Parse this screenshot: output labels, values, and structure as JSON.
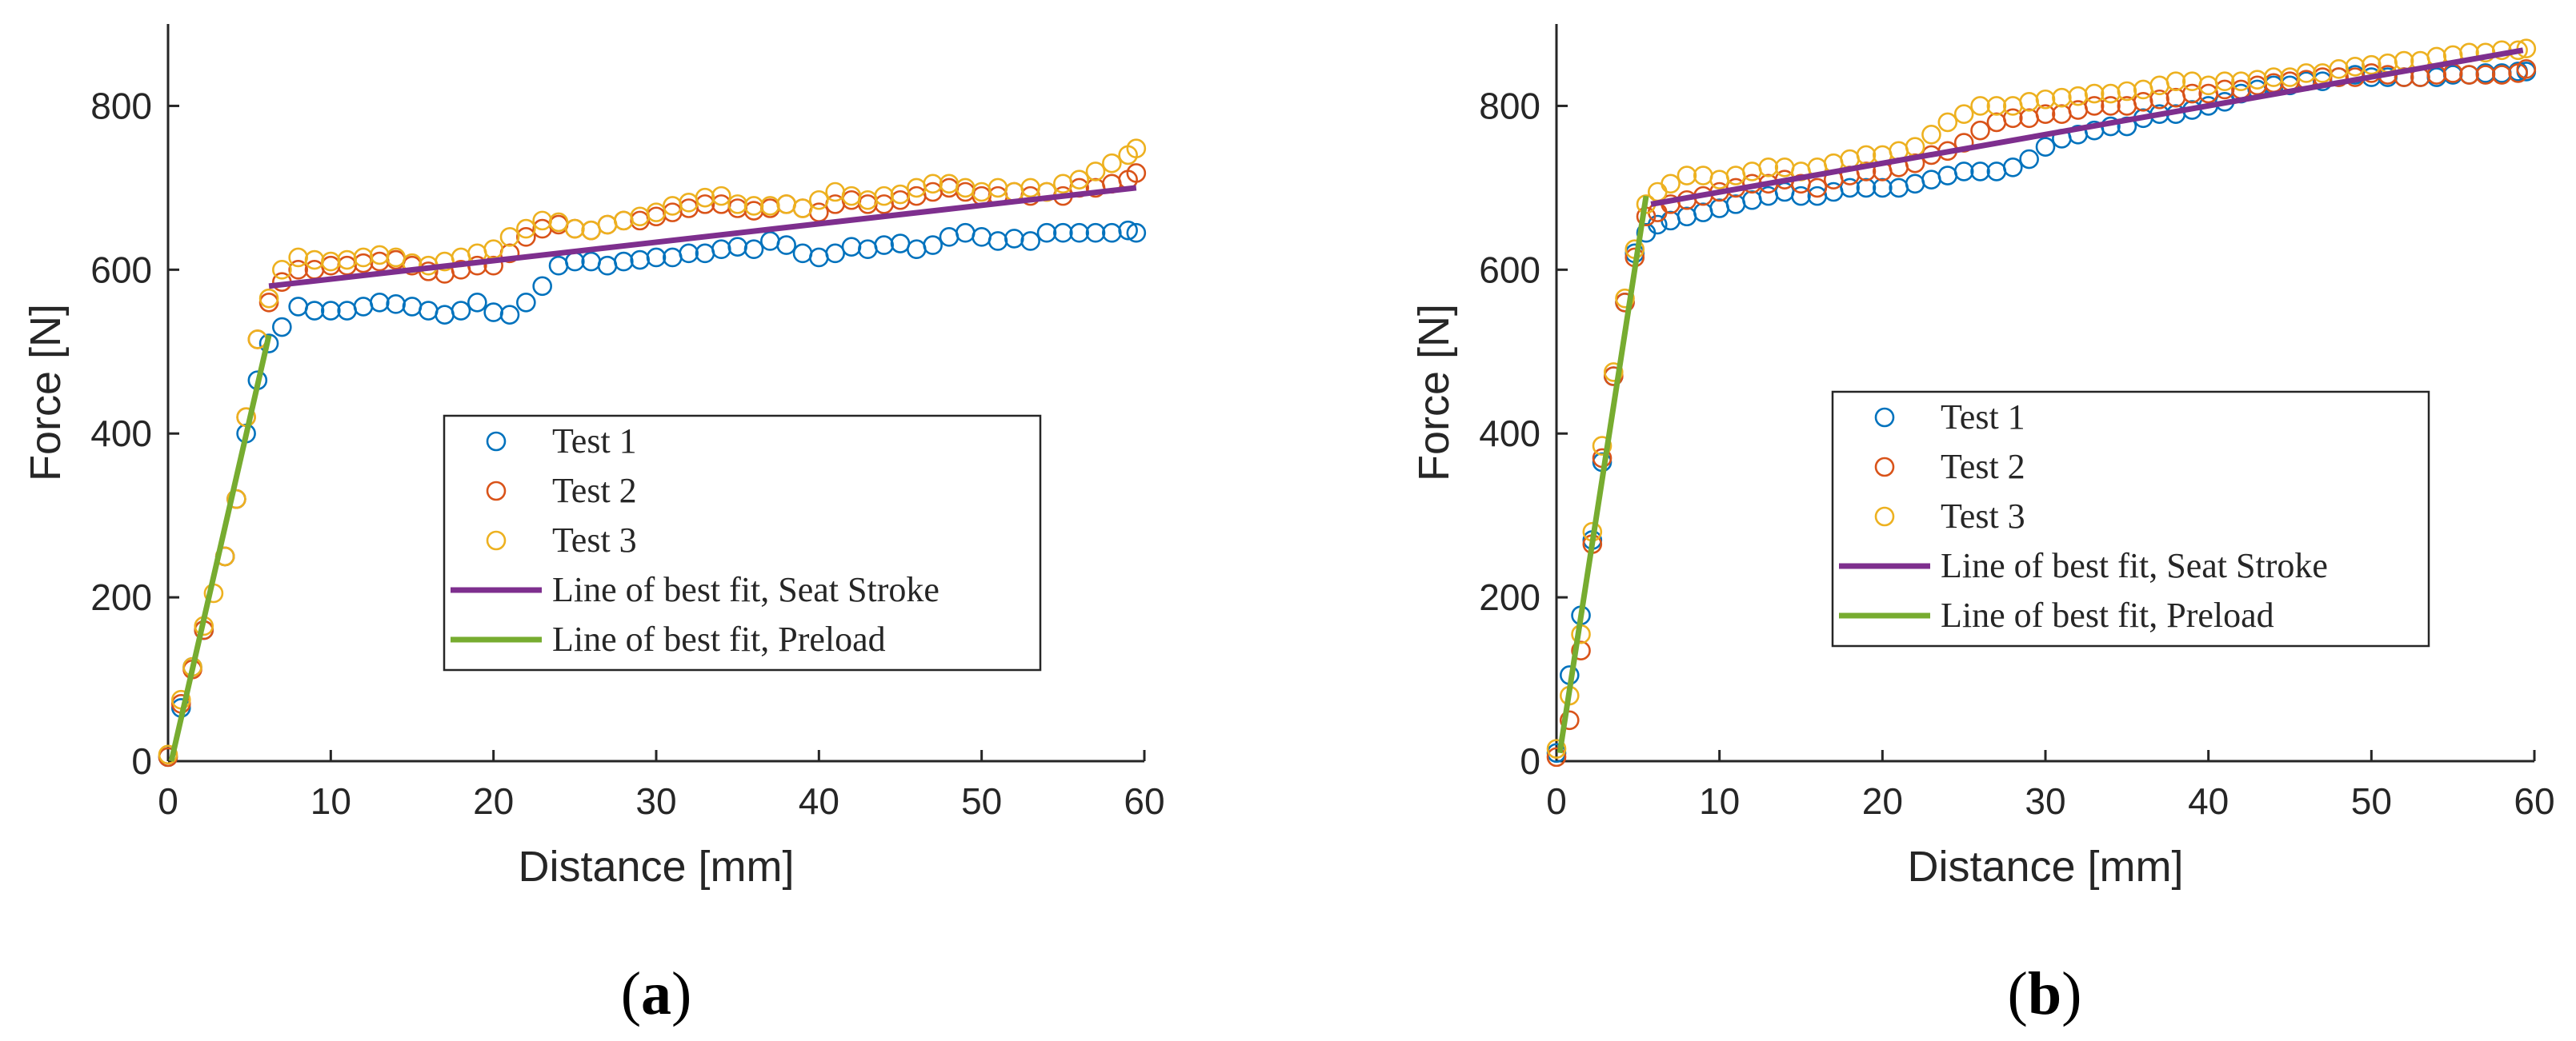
{
  "chart_data": [
    {
      "type": "scatter",
      "panel_label": {
        "open": "(",
        "letter": "a",
        "close": ")"
      },
      "xlabel": "Distance [mm]",
      "ylabel": "Force [N]",
      "xlim": [
        0,
        60
      ],
      "ylim": [
        0,
        900
      ],
      "xticks": [
        0,
        10,
        20,
        30,
        40,
        50,
        60
      ],
      "yticks": [
        0,
        200,
        400,
        600,
        800
      ],
      "legend_position": "center-right",
      "series": [
        {
          "name": "Test 1",
          "kind": "markers",
          "color": "#0072BD",
          "x": [
            0,
            0.8,
            1.5,
            2.2,
            3.5,
            4.2,
            4.8,
            5.5,
            6.2,
            7,
            8,
            9,
            10,
            11,
            12,
            13,
            14,
            15,
            16,
            17,
            18,
            19,
            20,
            21,
            22,
            23,
            24,
            25,
            26,
            27,
            28,
            29,
            30,
            31,
            32,
            33,
            34,
            35,
            36,
            37,
            38,
            39,
            40,
            41,
            42,
            43,
            44,
            45,
            46,
            47,
            48,
            49,
            50,
            51,
            52,
            53,
            54,
            55,
            56,
            57,
            58,
            59,
            59.5
          ],
          "y": [
            5,
            65,
            115,
            160,
            250,
            320,
            400,
            465,
            510,
            530,
            555,
            550,
            550,
            550,
            555,
            560,
            558,
            555,
            550,
            545,
            550,
            560,
            548,
            545,
            560,
            580,
            605,
            610,
            610,
            605,
            610,
            612,
            615,
            615,
            620,
            620,
            625,
            628,
            625,
            635,
            630,
            620,
            615,
            620,
            628,
            625,
            630,
            632,
            625,
            630,
            640,
            645,
            640,
            635,
            638,
            635,
            645,
            645,
            645,
            645,
            645,
            648,
            645
          ]
        },
        {
          "name": "Test 2",
          "kind": "markers",
          "color": "#D95319",
          "x": [
            0,
            0.8,
            1.5,
            2.2,
            3.5,
            4.2,
            4.8,
            5.5,
            6.2,
            7,
            8,
            9,
            10,
            11,
            12,
            13,
            14,
            15,
            16,
            17,
            18,
            19,
            20,
            21,
            22,
            23,
            24,
            25,
            26,
            27,
            28,
            29,
            30,
            31,
            32,
            33,
            34,
            35,
            36,
            37,
            38,
            39,
            40,
            41,
            42,
            43,
            44,
            45,
            46,
            47,
            48,
            49,
            50,
            51,
            52,
            53,
            54,
            55,
            56,
            57,
            58,
            59,
            59.5
          ],
          "y": [
            5,
            70,
            112,
            160,
            250,
            320,
            420,
            515,
            560,
            585,
            600,
            600,
            605,
            605,
            608,
            610,
            612,
            605,
            598,
            595,
            600,
            605,
            605,
            620,
            640,
            650,
            655,
            650,
            648,
            655,
            660,
            660,
            665,
            670,
            675,
            680,
            680,
            675,
            672,
            675,
            680,
            675,
            670,
            680,
            685,
            680,
            680,
            685,
            690,
            695,
            700,
            695,
            690,
            690,
            695,
            690,
            695,
            690,
            700,
            700,
            705,
            710,
            718
          ]
        },
        {
          "name": "Test 3",
          "kind": "markers",
          "color": "#EDB120",
          "x": [
            0,
            0.8,
            1.5,
            2.2,
            2.8,
            3.5,
            4.2,
            4.8,
            5.5,
            6.2,
            7,
            8,
            9,
            10,
            11,
            12,
            13,
            14,
            15,
            16,
            17,
            18,
            19,
            20,
            21,
            22,
            23,
            24,
            25,
            26,
            27,
            28,
            29,
            30,
            31,
            32,
            33,
            34,
            35,
            36,
            37,
            38,
            39,
            40,
            41,
            42,
            43,
            44,
            45,
            46,
            47,
            48,
            49,
            50,
            51,
            52,
            53,
            54,
            55,
            56,
            57,
            58,
            59,
            59.5
          ],
          "y": [
            8,
            75,
            115,
            165,
            205,
            250,
            320,
            420,
            515,
            565,
            600,
            615,
            612,
            610,
            612,
            615,
            618,
            615,
            608,
            605,
            610,
            615,
            620,
            625,
            640,
            650,
            660,
            658,
            650,
            648,
            655,
            660,
            665,
            670,
            678,
            682,
            688,
            690,
            680,
            678,
            678,
            680,
            675,
            685,
            695,
            690,
            685,
            690,
            692,
            700,
            705,
            705,
            700,
            695,
            700,
            695,
            700,
            695,
            705,
            710,
            720,
            730,
            740,
            748
          ]
        },
        {
          "name": "Line of best fit, Seat Stroke",
          "kind": "line",
          "color": "#7E2F8E",
          "x": [
            6.2,
            59.5
          ],
          "y": [
            580,
            700
          ]
        },
        {
          "name": "Line of best fit, Preload",
          "kind": "line",
          "color": "#77AC30",
          "x": [
            0.2,
            6.2
          ],
          "y": [
            0,
            520
          ]
        }
      ]
    },
    {
      "type": "scatter",
      "panel_label": {
        "open": "(",
        "letter": "b",
        "close": ")"
      },
      "xlabel": "Distance [mm]",
      "ylabel": "Force [N]",
      "xlim": [
        0,
        60
      ],
      "ylim": [
        0,
        900
      ],
      "xticks": [
        0,
        10,
        20,
        30,
        40,
        50,
        60
      ],
      "yticks": [
        0,
        200,
        400,
        600,
        800
      ],
      "legend_position": "center",
      "series": [
        {
          "name": "Test 1",
          "kind": "markers",
          "color": "#0072BD",
          "x": [
            0,
            0.8,
            1.5,
            2.2,
            2.8,
            3.5,
            4.2,
            4.8,
            5.5,
            6.2,
            7,
            8,
            9,
            10,
            11,
            12,
            13,
            14,
            15,
            16,
            17,
            18,
            19,
            20,
            21,
            22,
            23,
            24,
            25,
            26,
            27,
            28,
            29,
            30,
            31,
            32,
            33,
            34,
            35,
            36,
            37,
            38,
            39,
            40,
            41,
            42,
            43,
            44,
            45,
            46,
            47,
            48,
            49,
            50,
            51,
            52,
            53,
            54,
            55,
            56,
            57,
            58,
            59,
            59.5
          ],
          "y": [
            10,
            105,
            178,
            270,
            365,
            470,
            560,
            620,
            645,
            655,
            660,
            665,
            670,
            675,
            680,
            685,
            690,
            695,
            690,
            690,
            695,
            700,
            700,
            700,
            700,
            705,
            710,
            715,
            720,
            720,
            720,
            725,
            735,
            750,
            760,
            765,
            770,
            775,
            775,
            785,
            790,
            790,
            795,
            800,
            805,
            815,
            820,
            825,
            825,
            830,
            830,
            835,
            838,
            835,
            835,
            835,
            835,
            835,
            838,
            838,
            840,
            840,
            842,
            842
          ]
        },
        {
          "name": "Test 2",
          "kind": "markers",
          "color": "#D95319",
          "x": [
            0,
            0.8,
            1.5,
            2.2,
            2.8,
            3.5,
            4.2,
            4.8,
            5.5,
            6.2,
            7,
            8,
            9,
            10,
            11,
            12,
            13,
            14,
            15,
            16,
            17,
            18,
            19,
            20,
            21,
            22,
            23,
            24,
            25,
            26,
            27,
            28,
            29,
            30,
            31,
            32,
            33,
            34,
            35,
            36,
            37,
            38,
            39,
            40,
            41,
            42,
            43,
            44,
            45,
            46,
            47,
            48,
            49,
            50,
            51,
            52,
            53,
            54,
            55,
            56,
            57,
            58,
            59,
            59.5
          ],
          "y": [
            5,
            50,
            135,
            265,
            370,
            470,
            560,
            615,
            665,
            670,
            680,
            685,
            690,
            695,
            700,
            705,
            705,
            710,
            705,
            700,
            710,
            715,
            720,
            720,
            725,
            730,
            740,
            745,
            755,
            770,
            780,
            785,
            785,
            790,
            790,
            795,
            800,
            800,
            800,
            805,
            808,
            810,
            815,
            815,
            820,
            820,
            825,
            828,
            830,
            832,
            835,
            835,
            835,
            840,
            838,
            835,
            835,
            838,
            840,
            838,
            838,
            838,
            840,
            845
          ]
        },
        {
          "name": "Test 3",
          "kind": "markers",
          "color": "#EDB120",
          "x": [
            0,
            0.8,
            1.5,
            2.2,
            2.8,
            3.5,
            4.2,
            4.8,
            5.5,
            6.2,
            7,
            8,
            9,
            10,
            11,
            12,
            13,
            14,
            15,
            16,
            17,
            18,
            19,
            20,
            21,
            22,
            23,
            24,
            25,
            26,
            27,
            28,
            29,
            30,
            31,
            32,
            33,
            34,
            35,
            36,
            37,
            38,
            39,
            40,
            41,
            42,
            43,
            44,
            45,
            46,
            47,
            48,
            49,
            50,
            51,
            52,
            53,
            54,
            55,
            56,
            57,
            58,
            59,
            59.5
          ],
          "y": [
            15,
            80,
            155,
            280,
            385,
            475,
            565,
            625,
            680,
            695,
            705,
            715,
            715,
            710,
            715,
            720,
            725,
            725,
            720,
            725,
            730,
            735,
            740,
            740,
            745,
            750,
            765,
            780,
            790,
            800,
            800,
            800,
            805,
            808,
            810,
            812,
            815,
            815,
            818,
            820,
            825,
            830,
            830,
            825,
            830,
            830,
            832,
            835,
            835,
            840,
            840,
            845,
            848,
            850,
            852,
            855,
            855,
            860,
            862,
            865,
            865,
            868,
            868,
            870
          ]
        },
        {
          "name": "Line of best fit, Seat Stroke",
          "kind": "line",
          "color": "#7E2F8E",
          "x": [
            5.8,
            59.3
          ],
          "y": [
            680,
            868
          ]
        },
        {
          "name": "Line of best fit, Preload",
          "kind": "line",
          "color": "#77AC30",
          "x": [
            0.2,
            5.5
          ],
          "y": [
            10,
            690
          ]
        }
      ]
    }
  ]
}
